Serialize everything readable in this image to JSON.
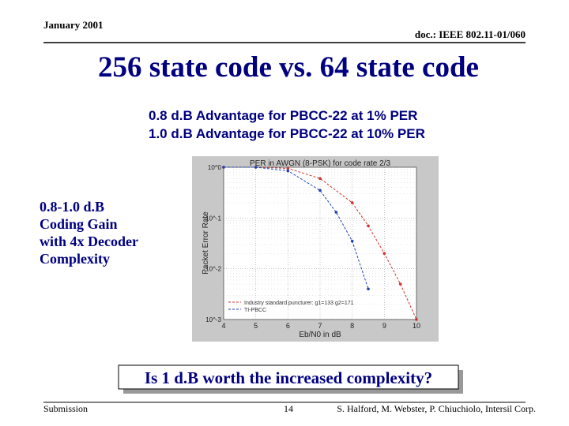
{
  "header": {
    "date": "January 2001",
    "doc": "doc.: IEEE 802.11-01/060"
  },
  "title": "256 state code vs. 64 state code",
  "bullets": [
    "0.8 d.B Advantage for PBCC-22 at 1% PER",
    "1.0 d.B Advantage for PBCC-22 at 10% PER"
  ],
  "side_note": [
    "0.8-1.0 d.B",
    "Coding Gain",
    "with 4x Decoder",
    "Complexity"
  ],
  "question": "Is 1 d.B worth the increased complexity?",
  "footer": {
    "left": "Submission",
    "page": "14",
    "authors": "S. Halford, M. Webster, P. Chiuchiolo, Intersil Corp."
  },
  "chart_data": {
    "type": "line",
    "title": "PER in AWGN (8-PSK) for code rate 2/3",
    "x_label": "Eb/N0 in dB",
    "y_label": "Packet Error Rate",
    "xlim": [
      4,
      10
    ],
    "xticks": [
      4,
      5,
      6,
      7,
      8,
      9,
      10
    ],
    "ylim": [
      0.001,
      1
    ],
    "log_y": true,
    "grid": true,
    "legend": "lower left",
    "yticks": [
      {
        "value": 1,
        "label": "10^0"
      },
      {
        "value": 0.1,
        "label": "10^-1"
      },
      {
        "value": 0.01,
        "label": "10^-2"
      },
      {
        "value": 0.001,
        "label": "10^-3"
      }
    ],
    "series": [
      {
        "name": "Industry standard puncturer: g1=133 g2=171",
        "color": "#d03030",
        "x": [
          4,
          5,
          6,
          7,
          8,
          8.5,
          9,
          9.5,
          10
        ],
        "values": [
          1,
          1,
          0.95,
          0.6,
          0.2,
          0.07,
          0.02,
          0.005,
          0.001
        ]
      },
      {
        "name": "TI-PBCC",
        "color": "#2040b0",
        "x": [
          4,
          5,
          6,
          7,
          7.5,
          8,
          8.5
        ],
        "values": [
          1,
          1,
          0.85,
          0.35,
          0.13,
          0.035,
          0.004
        ]
      }
    ]
  }
}
